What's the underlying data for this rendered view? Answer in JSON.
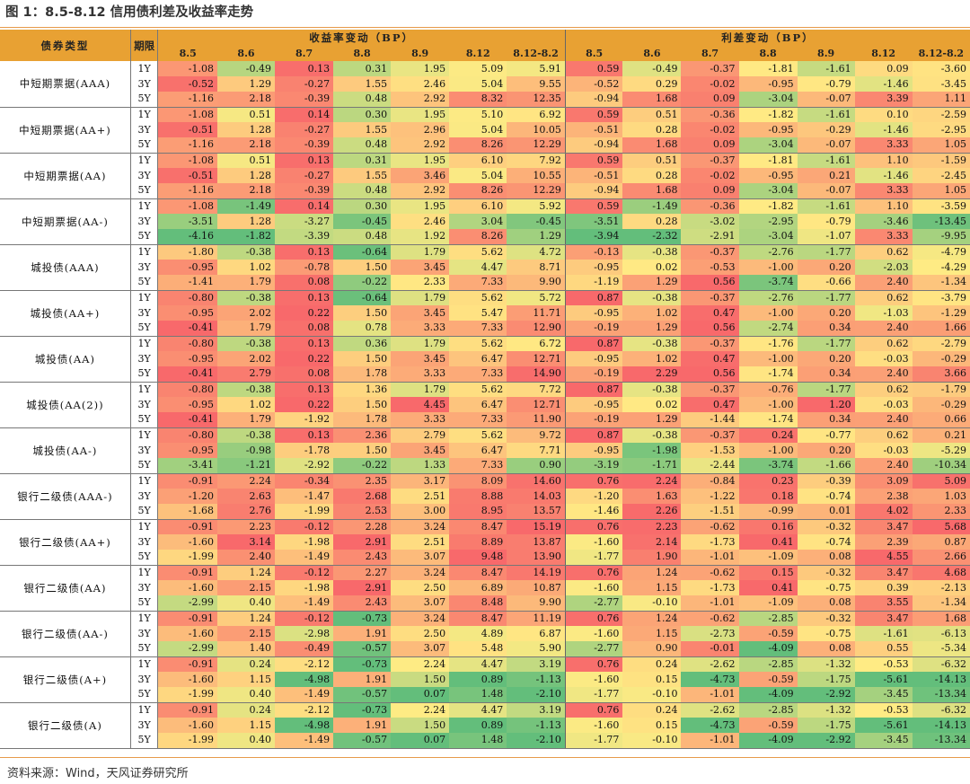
{
  "title": "图 1：8.5-8.12 信用债利差及收益率走势",
  "source": "资料来源：Wind，天风证券研究所",
  "header": {
    "type_label": "债券类型",
    "term_label": "期限",
    "yield_group": "收益率变动（BP）",
    "spread_group": "利差变动（BP）",
    "dates": [
      "8.5",
      "8.6",
      "8.7",
      "8.8",
      "8.9",
      "8.12",
      "8.12-8.2"
    ]
  },
  "colors": {
    "header_bg": "#e8a133",
    "rule": "#e79a4a",
    "scale_low": "#63be7b",
    "scale_mid": "#ffeb84",
    "scale_high": "#f8696b"
  },
  "terms": [
    "1Y",
    "3Y",
    "5Y"
  ],
  "groups": [
    {
      "name": "中短期票据(AAA)",
      "rows": [
        [
          -1.08,
          -0.49,
          0.13,
          0.31,
          1.95,
          5.09,
          5.91,
          0.59,
          -0.49,
          -0.37,
          -1.81,
          -1.61,
          0.09,
          -3.6
        ],
        [
          -0.52,
          1.29,
          -0.27,
          1.55,
          2.46,
          5.04,
          9.55,
          -0.52,
          0.29,
          -0.02,
          -0.95,
          -0.79,
          -1.46,
          -3.45
        ],
        [
          -1.16,
          2.18,
          -0.39,
          0.48,
          2.92,
          8.32,
          12.35,
          -0.94,
          1.68,
          0.09,
          -3.04,
          -0.07,
          3.39,
          1.11
        ]
      ]
    },
    {
      "name": "中短期票据(AA+)",
      "rows": [
        [
          -1.08,
          0.51,
          0.14,
          0.3,
          1.95,
          5.1,
          6.92,
          0.59,
          0.51,
          -0.36,
          -1.82,
          -1.61,
          0.1,
          -2.59
        ],
        [
          -0.51,
          1.28,
          -0.27,
          1.55,
          2.96,
          5.04,
          10.05,
          -0.51,
          0.28,
          -0.02,
          -0.95,
          -0.29,
          -1.46,
          -2.95
        ],
        [
          -1.16,
          2.18,
          -0.39,
          0.48,
          2.92,
          8.26,
          12.29,
          -0.94,
          1.68,
          0.09,
          -3.04,
          -0.07,
          3.33,
          1.05
        ]
      ]
    },
    {
      "name": "中短期票据(AA)",
      "rows": [
        [
          -1.08,
          0.51,
          0.13,
          0.31,
          1.95,
          6.1,
          7.92,
          0.59,
          0.51,
          -0.37,
          -1.81,
          -1.61,
          1.1,
          -1.59
        ],
        [
          -0.51,
          1.28,
          -0.27,
          1.55,
          3.46,
          5.04,
          10.55,
          -0.51,
          0.28,
          -0.02,
          -0.95,
          0.21,
          -1.46,
          -2.45
        ],
        [
          -1.16,
          2.18,
          -0.39,
          0.48,
          2.92,
          8.26,
          12.29,
          -0.94,
          1.68,
          0.09,
          -3.04,
          -0.07,
          3.33,
          1.05
        ]
      ]
    },
    {
      "name": "中短期票据(AA-)",
      "rows": [
        [
          -1.08,
          -1.49,
          0.14,
          0.3,
          1.95,
          6.1,
          5.92,
          0.59,
          -1.49,
          -0.36,
          -1.82,
          -1.61,
          1.1,
          -3.59
        ],
        [
          -3.51,
          1.28,
          -3.27,
          -0.45,
          2.46,
          3.04,
          -0.45,
          -3.51,
          0.28,
          -3.02,
          -2.95,
          -0.79,
          -3.46,
          -13.45
        ],
        [
          -4.16,
          -1.82,
          -3.39,
          0.48,
          1.92,
          8.26,
          1.29,
          -3.94,
          -2.32,
          -2.91,
          -3.04,
          -1.07,
          3.33,
          -9.95
        ]
      ]
    },
    {
      "name": "城投债(AAA)",
      "rows": [
        [
          -1.8,
          -0.38,
          0.13,
          -0.64,
          1.79,
          5.62,
          4.72,
          -0.13,
          -0.38,
          -0.37,
          -2.76,
          -1.77,
          0.62,
          -4.79
        ],
        [
          -0.95,
          1.02,
          -0.78,
          1.5,
          3.45,
          4.47,
          8.71,
          -0.95,
          0.02,
          -0.53,
          -1.0,
          0.2,
          -2.03,
          -4.29
        ],
        [
          -1.41,
          1.79,
          0.08,
          -0.22,
          2.33,
          7.33,
          9.9,
          -1.19,
          1.29,
          0.56,
          -3.74,
          -0.66,
          2.4,
          -1.34
        ]
      ]
    },
    {
      "name": "城投债(AA+)",
      "rows": [
        [
          -0.8,
          -0.38,
          0.13,
          -0.64,
          1.79,
          5.62,
          5.72,
          0.87,
          -0.38,
          -0.37,
          -2.76,
          -1.77,
          0.62,
          -3.79
        ],
        [
          -0.95,
          2.02,
          0.22,
          1.5,
          3.45,
          5.47,
          11.71,
          -0.95,
          1.02,
          0.47,
          -1.0,
          0.2,
          -1.03,
          -1.29
        ],
        [
          -0.41,
          1.79,
          0.08,
          0.78,
          3.33,
          7.33,
          12.9,
          -0.19,
          1.29,
          0.56,
          -2.74,
          0.34,
          2.4,
          1.66
        ]
      ]
    },
    {
      "name": "城投债(AA)",
      "rows": [
        [
          -0.8,
          -0.38,
          0.13,
          0.36,
          1.79,
          5.62,
          6.72,
          0.87,
          -0.38,
          -0.37,
          -1.76,
          -1.77,
          0.62,
          -2.79
        ],
        [
          -0.95,
          2.02,
          0.22,
          1.5,
          3.45,
          6.47,
          12.71,
          -0.95,
          1.02,
          0.47,
          -1.0,
          0.2,
          -0.03,
          -0.29
        ],
        [
          -0.41,
          2.79,
          0.08,
          1.78,
          3.33,
          7.33,
          14.9,
          -0.19,
          2.29,
          0.56,
          -1.74,
          0.34,
          2.4,
          3.66
        ]
      ]
    },
    {
      "name": "城投债(AA(2))",
      "rows": [
        [
          -0.8,
          -0.38,
          0.13,
          1.36,
          1.79,
          5.62,
          7.72,
          0.87,
          -0.38,
          -0.37,
          -0.76,
          -1.77,
          0.62,
          -1.79
        ],
        [
          -0.95,
          1.02,
          0.22,
          1.5,
          4.45,
          6.47,
          12.71,
          -0.95,
          0.02,
          0.47,
          -1.0,
          1.2,
          -0.03,
          -0.29
        ],
        [
          -0.41,
          1.79,
          -1.92,
          1.78,
          3.33,
          7.33,
          11.9,
          -0.19,
          1.29,
          -1.44,
          -1.74,
          0.34,
          2.4,
          0.66
        ]
      ]
    },
    {
      "name": "城投债(AA-)",
      "rows": [
        [
          -0.8,
          -0.38,
          0.13,
          2.36,
          2.79,
          5.62,
          9.72,
          0.87,
          -0.38,
          -0.37,
          0.24,
          -0.77,
          0.62,
          0.21
        ],
        [
          -0.95,
          -0.98,
          -1.78,
          1.5,
          3.45,
          6.47,
          7.71,
          -0.95,
          -1.98,
          -1.53,
          -1.0,
          0.2,
          -0.03,
          -5.29
        ],
        [
          -3.41,
          -1.21,
          -2.92,
          -0.22,
          1.33,
          7.33,
          0.9,
          -3.19,
          -1.71,
          -2.44,
          -3.74,
          -1.66,
          2.4,
          -10.34
        ]
      ]
    },
    {
      "name": "银行二级债(AAA-)",
      "rows": [
        [
          -0.91,
          2.24,
          -0.34,
          2.35,
          3.17,
          8.09,
          14.6,
          0.76,
          2.24,
          -0.84,
          0.23,
          -0.39,
          3.09,
          5.09
        ],
        [
          -1.2,
          2.63,
          -1.47,
          2.68,
          2.51,
          8.88,
          14.03,
          -1.2,
          1.63,
          -1.22,
          0.18,
          -0.74,
          2.38,
          1.03
        ],
        [
          -1.68,
          2.76,
          -1.99,
          2.53,
          3.0,
          8.95,
          13.57,
          -1.46,
          2.26,
          -1.51,
          -0.99,
          0.01,
          4.02,
          2.33
        ]
      ]
    },
    {
      "name": "银行二级债(AA+)",
      "rows": [
        [
          -0.91,
          2.23,
          -0.12,
          2.28,
          3.24,
          8.47,
          15.19,
          0.76,
          2.23,
          -0.62,
          0.16,
          -0.32,
          3.47,
          5.68
        ],
        [
          -1.6,
          3.14,
          -1.98,
          2.91,
          2.51,
          8.89,
          13.87,
          -1.6,
          2.14,
          -1.73,
          0.41,
          -0.74,
          2.39,
          0.87
        ],
        [
          -1.99,
          2.4,
          -1.49,
          2.43,
          3.07,
          9.48,
          13.9,
          -1.77,
          1.9,
          -1.01,
          -1.09,
          0.08,
          4.55,
          2.66
        ]
      ]
    },
    {
      "name": "银行二级债(AA)",
      "rows": [
        [
          -0.91,
          1.24,
          -0.12,
          2.27,
          3.24,
          8.47,
          14.19,
          0.76,
          1.24,
          -0.62,
          0.15,
          -0.32,
          3.47,
          4.68
        ],
        [
          -1.6,
          2.15,
          -1.98,
          2.91,
          2.5,
          6.89,
          10.87,
          -1.6,
          1.15,
          -1.73,
          0.41,
          -0.75,
          0.39,
          -2.13
        ],
        [
          -2.99,
          0.4,
          -1.49,
          2.43,
          3.07,
          8.48,
          9.9,
          -2.77,
          -0.1,
          -1.01,
          -1.09,
          0.08,
          3.55,
          -1.34
        ]
      ]
    },
    {
      "name": "银行二级债(AA-)",
      "rows": [
        [
          -0.91,
          1.24,
          -0.12,
          -0.73,
          3.24,
          8.47,
          11.19,
          0.76,
          1.24,
          -0.62,
          -2.85,
          -0.32,
          3.47,
          1.68
        ],
        [
          -1.6,
          2.15,
          -2.98,
          1.91,
          2.5,
          4.89,
          6.87,
          -1.6,
          1.15,
          -2.73,
          -0.59,
          -0.75,
          -1.61,
          -6.13
        ],
        [
          -2.99,
          1.4,
          -0.49,
          -0.57,
          3.07,
          5.48,
          5.9,
          -2.77,
          0.9,
          -0.01,
          -4.09,
          0.08,
          0.55,
          -5.34
        ]
      ]
    },
    {
      "name": "银行二级债(A+)",
      "rows": [
        [
          -0.91,
          0.24,
          -2.12,
          -0.73,
          2.24,
          4.47,
          3.19,
          0.76,
          0.24,
          -2.62,
          -2.85,
          -1.32,
          -0.53,
          -6.32
        ],
        [
          -1.6,
          1.15,
          -4.98,
          1.91,
          1.5,
          0.89,
          -1.13,
          -1.6,
          0.15,
          -4.73,
          -0.59,
          -1.75,
          -5.61,
          -14.13
        ],
        [
          -1.99,
          0.4,
          -1.49,
          -0.57,
          0.07,
          1.48,
          -2.1,
          -1.77,
          -0.1,
          -1.01,
          -4.09,
          -2.92,
          -3.45,
          -13.34
        ]
      ]
    },
    {
      "name": "银行二级债(A)",
      "rows": [
        [
          -0.91,
          0.24,
          -2.12,
          -0.73,
          2.24,
          4.47,
          3.19,
          0.76,
          0.24,
          -2.62,
          -2.85,
          -1.32,
          -0.53,
          -6.32
        ],
        [
          -1.6,
          1.15,
          -4.98,
          1.91,
          1.5,
          0.89,
          -1.13,
          -1.6,
          0.15,
          -4.73,
          -0.59,
          -1.75,
          -5.61,
          -14.13
        ],
        [
          -1.99,
          0.4,
          -1.49,
          -0.57,
          0.07,
          1.48,
          -2.1,
          -1.77,
          -0.1,
          -1.01,
          -4.09,
          -2.92,
          -3.45,
          -13.34
        ]
      ]
    }
  ]
}
